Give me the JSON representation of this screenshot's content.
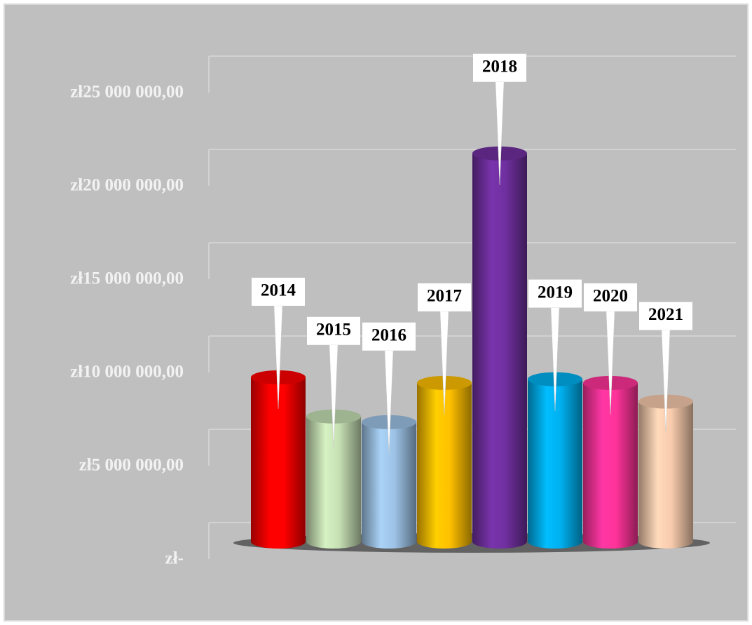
{
  "chart_data": {
    "type": "bar",
    "categories": [
      "2014",
      "2015",
      "2016",
      "2017",
      "2018",
      "2019",
      "2020",
      "2021"
    ],
    "values": [
      8800000,
      6700000,
      6400000,
      8500000,
      20800000,
      8700000,
      8500000,
      7500000
    ],
    "colors": [
      "#ff0000",
      "#c6e0b4",
      "#9dc3e6",
      "#ffc000",
      "#7030a0",
      "#00b0f0",
      "#ff3399",
      "#f8cbad"
    ],
    "ylim": [
      0,
      27000000
    ],
    "yticks": [
      {
        "value": 0,
        "label": "zł-"
      },
      {
        "value": 5000000,
        "label": "zł5 000 000,00"
      },
      {
        "value": 10000000,
        "label": "zł10 000 000,00"
      },
      {
        "value": 15000000,
        "label": "zł15 000 000,00"
      },
      {
        "value": 20000000,
        "label": "zł20 000 000,00"
      },
      {
        "value": 25000000,
        "label": "zł25 000 000,00"
      }
    ],
    "grid": true
  }
}
